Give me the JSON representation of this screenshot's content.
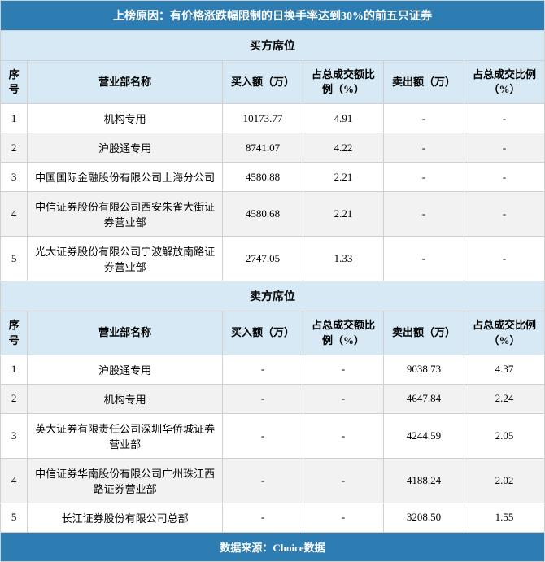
{
  "title": "上榜原因：有价格涨跌幅限制的日换手率达到30%的前五只证券",
  "footer": "数据来源：Choice数据",
  "buyer_section": "买方席位",
  "seller_section": "卖方席位",
  "headers": {
    "seq": "序号",
    "name": "营业部名称",
    "buy_amt": "买入额（万）",
    "buy_pct": "占总成交额比例（%）",
    "sell_amt": "卖出额（万）",
    "sell_pct": "占总成交比例（%）"
  },
  "buyers": [
    {
      "seq": "1",
      "name": "机构专用",
      "buy_amt": "10173.77",
      "buy_pct": "4.91",
      "sell_amt": "-",
      "sell_pct": "-"
    },
    {
      "seq": "2",
      "name": "沪股通专用",
      "buy_amt": "8741.07",
      "buy_pct": "4.22",
      "sell_amt": "-",
      "sell_pct": "-"
    },
    {
      "seq": "3",
      "name": "中国国际金融股份有限公司上海分公司",
      "buy_amt": "4580.88",
      "buy_pct": "2.21",
      "sell_amt": "-",
      "sell_pct": "-"
    },
    {
      "seq": "4",
      "name": "中信证券股份有限公司西安朱雀大街证券营业部",
      "buy_amt": "4580.68",
      "buy_pct": "2.21",
      "sell_amt": "-",
      "sell_pct": "-"
    },
    {
      "seq": "5",
      "name": "光大证券股份有限公司宁波解放南路证券营业部",
      "buy_amt": "2747.05",
      "buy_pct": "1.33",
      "sell_amt": "-",
      "sell_pct": "-"
    }
  ],
  "sellers": [
    {
      "seq": "1",
      "name": "沪股通专用",
      "buy_amt": "-",
      "buy_pct": "-",
      "sell_amt": "9038.73",
      "sell_pct": "4.37"
    },
    {
      "seq": "2",
      "name": "机构专用",
      "buy_amt": "-",
      "buy_pct": "-",
      "sell_amt": "4647.84",
      "sell_pct": "2.24"
    },
    {
      "seq": "3",
      "name": "英大证券有限责任公司深圳华侨城证券营业部",
      "buy_amt": "-",
      "buy_pct": "-",
      "sell_amt": "4244.59",
      "sell_pct": "2.05"
    },
    {
      "seq": "4",
      "name": "中信证券华南股份有限公司广州珠江西路证券营业部",
      "buy_amt": "-",
      "buy_pct": "-",
      "sell_amt": "4188.24",
      "sell_pct": "2.02"
    },
    {
      "seq": "5",
      "name": "长江证券股份有限公司总部",
      "buy_amt": "-",
      "buy_pct": "-",
      "sell_amt": "3208.50",
      "sell_pct": "1.55"
    }
  ]
}
